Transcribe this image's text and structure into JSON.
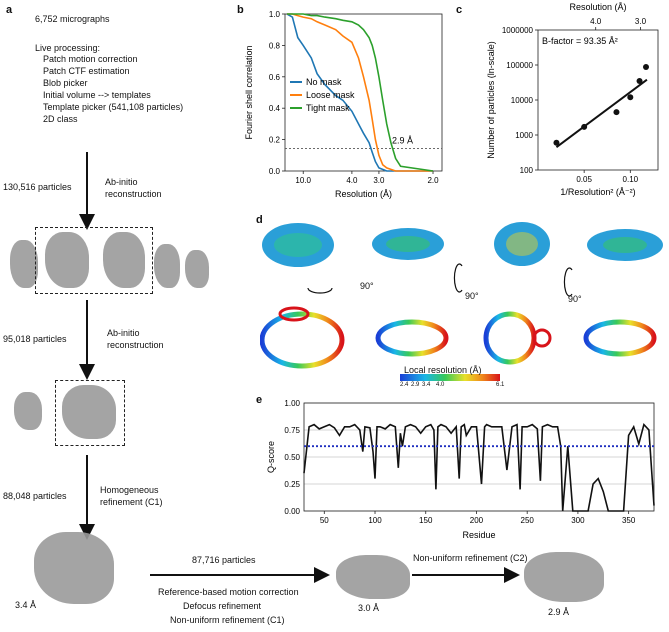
{
  "panel_labels": {
    "a": "a",
    "b": "b",
    "c": "c",
    "d": "d",
    "e": "e"
  },
  "workflow": {
    "micrographs": "6,752 micrographs",
    "live_title": "Live processing:",
    "live_steps": [
      "Patch motion correction",
      "Patch CTF estimation",
      "Blob picker",
      "Initial volume --> templates",
      "Template picker (541,108 particles)",
      "2D class"
    ],
    "step1_particles": "130,516 particles",
    "step1_method": [
      "Ab-initio",
      "reconstruction"
    ],
    "step2_particles": "95,018 particles",
    "step2_method": [
      "Ab-initio",
      "reconstruction"
    ],
    "step3_particles": "88,048 particles",
    "step3_method": [
      "Homogeneous",
      "refinement (C1)"
    ],
    "map1_res": "3.4 Å",
    "step4_particles": "87,716 particles",
    "step4_methods": [
      "Reference-based motion correction",
      "Defocus refinement",
      "Non-uniform refinement (C1)"
    ],
    "map2_res": "3.0 Å",
    "step5_method": "Non-uniform refinement (C2)",
    "map3_res": "2.9 Å"
  },
  "panel_d": {
    "rot1": "90°",
    "rot2": "90°",
    "rot3": "90°",
    "colorbar_title": "Local resolution (Å)",
    "colorbar_ticks": [
      "2.4",
      "2.9",
      "3.4",
      "4.0",
      "6.1"
    ]
  },
  "colors": {
    "no_mask": "#1f77b4",
    "loose_mask": "#ff7f0e",
    "tight_mask": "#2ca02c",
    "map_gray": "#9a9a9a",
    "qscore_ref": "#1f2fbf"
  },
  "chart_data": [
    {
      "type": "line",
      "ylabel": "Fourier shell correlation",
      "xlabel": "Resolution (Å)",
      "xticks": [
        "10.0",
        "4.0",
        "3.0",
        "2.0"
      ],
      "yticks": [
        "0.0",
        "0.2",
        "0.4",
        "0.6",
        "0.8",
        "1.0"
      ],
      "ylim": [
        0,
        1
      ],
      "threshold": 0.143,
      "threshold_label": "2.9 Å",
      "legend_position": "lower-left",
      "series": [
        {
          "name": "No mask",
          "x": [
            20,
            15,
            12,
            10,
            8,
            7,
            6,
            5,
            4.5,
            4,
            3.7,
            3.5,
            3.3,
            3.2,
            3.1,
            3.0,
            2.9,
            2.8,
            2.7,
            2.6,
            2.5,
            2.0
          ],
          "y": [
            1.0,
            0.98,
            0.85,
            0.8,
            0.72,
            0.62,
            0.55,
            0.48,
            0.45,
            0.38,
            0.3,
            0.24,
            0.18,
            0.12,
            0.06,
            0.02,
            0.01,
            0.0,
            0.0,
            0.0,
            0.0,
            0.0
          ]
        },
        {
          "name": "Loose mask",
          "x": [
            20,
            15,
            12,
            10,
            8,
            7,
            6,
            5,
            4.5,
            4,
            3.7,
            3.5,
            3.3,
            3.2,
            3.1,
            3.0,
            2.9,
            2.8,
            2.7,
            2.6,
            2.5,
            2.0
          ],
          "y": [
            1.0,
            1.0,
            0.99,
            0.98,
            0.97,
            0.95,
            0.93,
            0.9,
            0.86,
            0.82,
            0.72,
            0.6,
            0.45,
            0.33,
            0.2,
            0.1,
            0.04,
            0.02,
            0.01,
            0.0,
            0.0,
            0.0
          ]
        },
        {
          "name": "Tight mask",
          "x": [
            20,
            15,
            12,
            10,
            8,
            7,
            6,
            5,
            4.5,
            4,
            3.7,
            3.5,
            3.3,
            3.2,
            3.1,
            3.0,
            2.9,
            2.8,
            2.7,
            2.6,
            2.5,
            2.0
          ],
          "y": [
            1.0,
            1.0,
            1.0,
            1.0,
            0.99,
            0.99,
            0.98,
            0.97,
            0.96,
            0.95,
            0.93,
            0.9,
            0.85,
            0.8,
            0.72,
            0.6,
            0.45,
            0.3,
            0.18,
            0.08,
            0.03,
            0.0
          ]
        }
      ]
    },
    {
      "type": "scatter",
      "title": "Resolution (Å)",
      "xlabel": "1/Resolution² (Å⁻²)",
      "ylabel": "Number of particles (ln-scale)",
      "annotation": "B-factor = 93.35 Å²",
      "top_ticks": [
        "4.0",
        "3.0"
      ],
      "top_tick_x": [
        0.0625,
        0.111
      ],
      "xticks": [
        "0.05",
        "0.10"
      ],
      "xlim": [
        0.0,
        0.13
      ],
      "yticks": [
        "100",
        "1000",
        "10000",
        "100000",
        "1000000"
      ],
      "ylog": true,
      "ylim": [
        100,
        1000000
      ],
      "points": [
        {
          "x": 0.02,
          "y": 600
        },
        {
          "x": 0.05,
          "y": 1700
        },
        {
          "x": 0.085,
          "y": 4500
        },
        {
          "x": 0.1,
          "y": 12000
        },
        {
          "x": 0.11,
          "y": 35000
        },
        {
          "x": 0.117,
          "y": 88000
        }
      ],
      "fit": [
        {
          "x": 0.02,
          "y": 450
        },
        {
          "x": 0.118,
          "y": 38000
        }
      ]
    },
    {
      "type": "line",
      "xlabel": "Residue",
      "ylabel": "Q-score",
      "xticks": [
        "50",
        "100",
        "150",
        "200",
        "250",
        "300",
        "350"
      ],
      "xlim": [
        30,
        375
      ],
      "yticks": [
        "0.00",
        "0.25",
        "0.50",
        "0.75",
        "1.00"
      ],
      "ylim": [
        0,
        1
      ],
      "reference": 0.6,
      "series": [
        {
          "name": "",
          "x": [
            30,
            35,
            40,
            45,
            50,
            55,
            60,
            65,
            70,
            75,
            80,
            85,
            88,
            90,
            95,
            98,
            100,
            102,
            105,
            110,
            115,
            120,
            123,
            125,
            127,
            130,
            135,
            140,
            145,
            150,
            155,
            158,
            160,
            162,
            165,
            170,
            175,
            180,
            183,
            185,
            188,
            190,
            195,
            200,
            205,
            208,
            210,
            215,
            220,
            225,
            230,
            235,
            240,
            243,
            245,
            250,
            255,
            260,
            263,
            265,
            270,
            275,
            280,
            283,
            285,
            290,
            295,
            300,
            305,
            310,
            315,
            320,
            325,
            330,
            335,
            340,
            345,
            350,
            355,
            360,
            365,
            370,
            375
          ],
          "y": [
            0.35,
            0.78,
            0.8,
            0.76,
            0.78,
            0.8,
            0.77,
            0.7,
            0.78,
            0.78,
            0.8,
            0.75,
            0.55,
            0.78,
            0.77,
            0.55,
            0.3,
            0.78,
            0.78,
            0.76,
            0.8,
            0.78,
            0.4,
            0.72,
            0.6,
            0.78,
            0.8,
            0.78,
            0.72,
            0.78,
            0.8,
            0.75,
            0.2,
            0.78,
            0.8,
            0.78,
            0.72,
            0.78,
            0.3,
            0.78,
            0.8,
            0.7,
            0.78,
            0.78,
            0.25,
            0.78,
            0.8,
            0.78,
            0.78,
            0.78,
            0.38,
            0.78,
            0.8,
            0.2,
            0.78,
            0.78,
            0.8,
            0.76,
            0.28,
            0.78,
            0.8,
            0.78,
            0.78,
            0.6,
            0.0,
            0.6,
            0.0,
            0.0,
            0.0,
            0.0,
            0.25,
            0.3,
            0.18,
            0.0,
            0.0,
            0.0,
            0.0,
            0.7,
            0.78,
            0.62,
            0.8,
            0.75,
            0.05
          ]
        }
      ]
    }
  ]
}
